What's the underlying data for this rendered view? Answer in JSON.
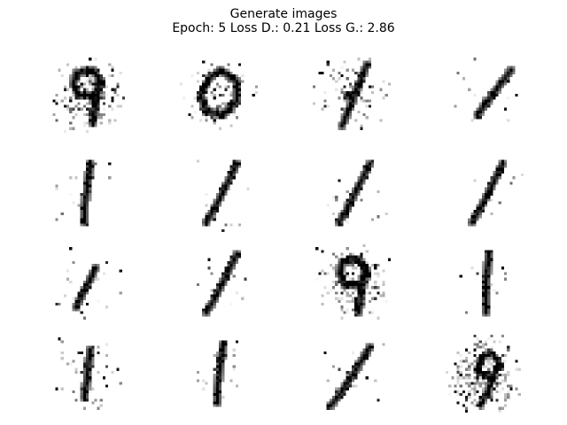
{
  "figure": {
    "title_line1": "Generate images",
    "title_line2": "Epoch: 5 Loss D.: 0.21 Loss G.: 2.86"
  },
  "images": [
    {
      "digit": "9",
      "style": "noisy-9"
    },
    {
      "digit": "0",
      "style": "noisy-loop"
    },
    {
      "digit": "1",
      "style": "slanted-blob"
    },
    {
      "digit": "1",
      "style": "thin-diagonal"
    },
    {
      "digit": "1",
      "style": "vertical"
    },
    {
      "digit": "1",
      "style": "slanted"
    },
    {
      "digit": "1",
      "style": "slanted"
    },
    {
      "digit": "1",
      "style": "slanted"
    },
    {
      "digit": "1",
      "style": "scattered"
    },
    {
      "digit": "1",
      "style": "slanted"
    },
    {
      "digit": "9",
      "style": "noisy-9"
    },
    {
      "digit": "1",
      "style": "vertical-thin"
    },
    {
      "digit": "1",
      "style": "faint"
    },
    {
      "digit": "1",
      "style": "vertical"
    },
    {
      "digit": "1",
      "style": "slanted-dense"
    },
    {
      "digit": "9",
      "style": "very-noisy"
    }
  ],
  "colormap": "gray_r"
}
